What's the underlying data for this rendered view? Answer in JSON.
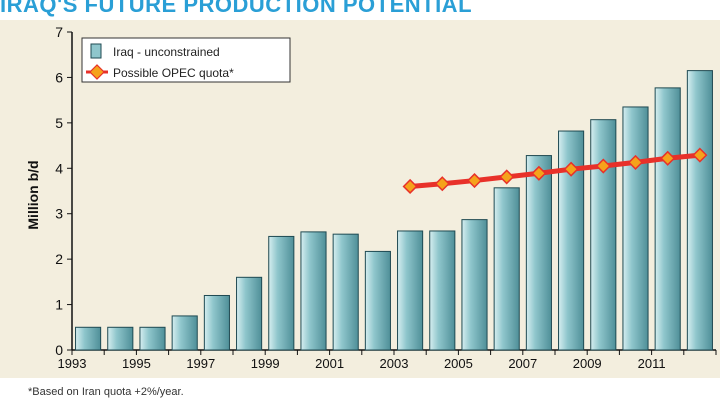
{
  "title_text": "IRAQ'S FUTURE PRODUCTION POTENTIAL",
  "footnote": "*Based on Iran quota +2%/year.",
  "colors": {
    "bar_fill": "#8fc6cc",
    "bar_edge": "#1f4a52",
    "line": "#e8312a",
    "marker": "#f5a21b",
    "panel": "#f3eede",
    "title": "#2a9fd6"
  },
  "chart_data": {
    "type": "bar",
    "title": "IRAQ'S FUTURE PRODUCTION POTENTIAL",
    "ylabel": "Million b/d",
    "xlabel": "",
    "ylim": [
      0,
      7
    ],
    "yticks": [
      0,
      1,
      2,
      3,
      4,
      5,
      6,
      7
    ],
    "x_tick_labels": [
      "1993",
      "1995",
      "1997",
      "1999",
      "2001",
      "2003",
      "2005",
      "2007",
      "2009",
      "2011"
    ],
    "categories": [
      1993,
      1994,
      1995,
      1996,
      1997,
      1998,
      1999,
      2000,
      2001,
      2002,
      2003,
      2004,
      2005,
      2006,
      2007,
      2008,
      2009,
      2010,
      2011,
      2012
    ],
    "series": [
      {
        "name": "Iraq - unconstrained",
        "type": "bar",
        "values": [
          0.5,
          0.5,
          0.5,
          0.75,
          1.2,
          1.6,
          2.5,
          2.6,
          2.55,
          2.17,
          2.62,
          2.62,
          2.87,
          3.57,
          4.28,
          4.82,
          5.07,
          5.35,
          5.77,
          6.15
        ]
      },
      {
        "name": "Possible OPEC quota*",
        "type": "line",
        "x": [
          2003,
          2004,
          2005,
          2006,
          2007,
          2008,
          2009,
          2010,
          2011,
          2012
        ],
        "values": [
          3.6,
          3.66,
          3.73,
          3.81,
          3.89,
          3.98,
          4.05,
          4.13,
          4.22,
          4.29
        ]
      }
    ],
    "legend_position": "top-left",
    "grid": false
  }
}
